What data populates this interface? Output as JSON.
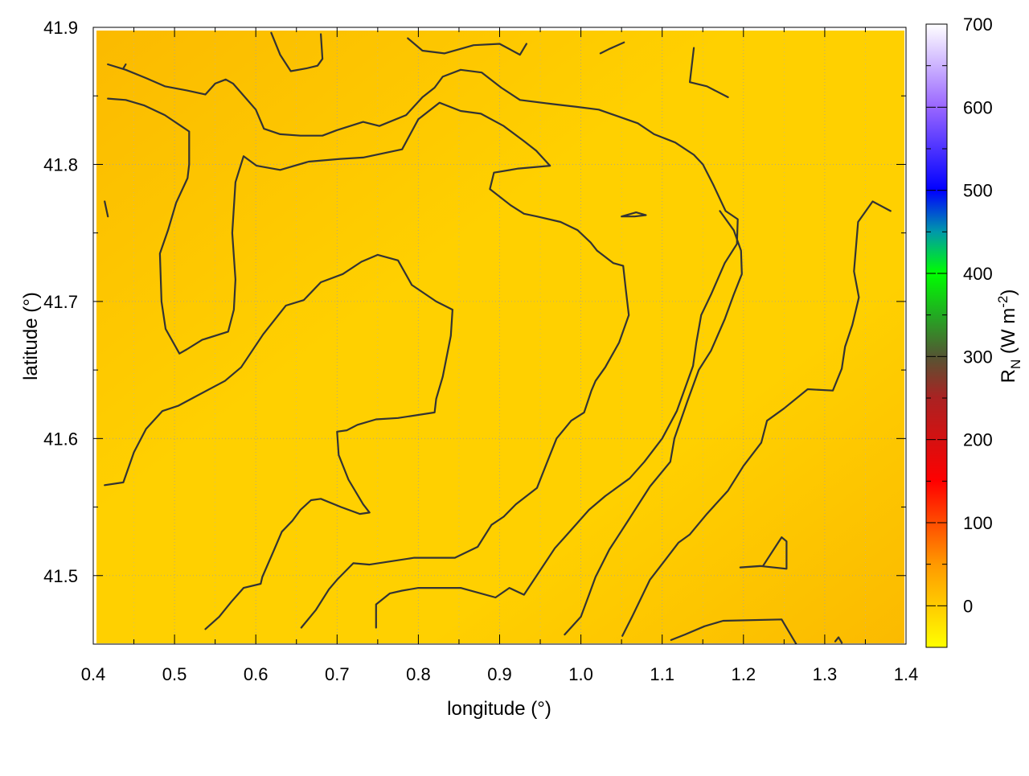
{
  "chart_data": {
    "type": "heatmap",
    "xlabel": "longitude (°)",
    "ylabel": "latitude (°)",
    "xlim": [
      0.4,
      1.4
    ],
    "ylim": [
      41.45,
      41.9
    ],
    "x_ticks": [
      {
        "value": 0.4,
        "label": "0.4"
      },
      {
        "value": 0.5,
        "label": "0.5"
      },
      {
        "value": 0.6,
        "label": "0.6"
      },
      {
        "value": 0.7,
        "label": "0.7"
      },
      {
        "value": 0.8,
        "label": "0.8"
      },
      {
        "value": 0.9,
        "label": "0.9"
      },
      {
        "value": 1.0,
        "label": "1.0"
      },
      {
        "value": 1.1,
        "label": "1.1"
      },
      {
        "value": 1.2,
        "label": "1.2"
      },
      {
        "value": 1.3,
        "label": "1.3"
      },
      {
        "value": 1.4,
        "label": "1.4"
      }
    ],
    "y_ticks": [
      {
        "value": 41.5,
        "label": "41.5"
      },
      {
        "value": 41.6,
        "label": "41.6"
      },
      {
        "value": 41.7,
        "label": "41.7"
      },
      {
        "value": 41.8,
        "label": "41.8"
      },
      {
        "value": 41.9,
        "label": "41.9"
      }
    ],
    "grid": true,
    "colorbar": {
      "label_main": "R",
      "label_sub": "N",
      "label_unit": " (W m",
      "label_sup": "-2",
      "label_close": ")",
      "range": [
        -50,
        700
      ],
      "ticks": [
        {
          "value": 0,
          "label": "0"
        },
        {
          "value": 100,
          "label": "100"
        },
        {
          "value": 200,
          "label": "200"
        },
        {
          "value": 300,
          "label": "300"
        },
        {
          "value": 400,
          "label": "400"
        },
        {
          "value": 500,
          "label": "500"
        },
        {
          "value": 600,
          "label": "600"
        },
        {
          "value": 700,
          "label": "700"
        }
      ],
      "stops": [
        {
          "value": -50,
          "color": "#ffff00"
        },
        {
          "value": 50,
          "color": "#ff9900"
        },
        {
          "value": 150,
          "color": "#ff0000"
        },
        {
          "value": 250,
          "color": "#aa2222"
        },
        {
          "value": 300,
          "color": "#555533"
        },
        {
          "value": 350,
          "color": "#22aa22"
        },
        {
          "value": 400,
          "color": "#00ff00"
        },
        {
          "value": 450,
          "color": "#0099aa"
        },
        {
          "value": 500,
          "color": "#0000ff"
        },
        {
          "value": 600,
          "color": "#9966ff"
        },
        {
          "value": 700,
          "color": "#ffffff"
        }
      ]
    },
    "field_colors": {
      "low": "#fbba00",
      "high": "#ffd000",
      "edge": "#ffffff"
    },
    "contour_color": "#333333",
    "contours": [
      [
        [
          0.418,
          41.873
        ],
        [
          0.44,
          41.869
        ],
        [
          0.465,
          41.863
        ],
        [
          0.488,
          41.857
        ],
        [
          0.515,
          41.854
        ],
        [
          0.538,
          41.851
        ],
        [
          0.55,
          41.859
        ],
        [
          0.563,
          41.862
        ],
        [
          0.572,
          41.859
        ],
        [
          0.6,
          41.84
        ],
        [
          0.61,
          41.826
        ],
        [
          0.63,
          41.822
        ],
        [
          0.655,
          41.821
        ],
        [
          0.682,
          41.821
        ],
        [
          0.7,
          41.825
        ],
        [
          0.732,
          41.831
        ],
        [
          0.752,
          41.828
        ],
        [
          0.785,
          41.836
        ],
        [
          0.805,
          41.849
        ],
        [
          0.82,
          41.856
        ],
        [
          0.83,
          41.864
        ],
        [
          0.852,
          41.869
        ],
        [
          0.878,
          41.867
        ],
        [
          0.902,
          41.856
        ],
        [
          0.925,
          41.847
        ],
        [
          0.965,
          41.844
        ],
        [
          0.995,
          41.842
        ],
        [
          1.022,
          41.84
        ],
        [
          1.07,
          41.83
        ],
        [
          1.09,
          41.822
        ],
        [
          1.116,
          41.816
        ],
        [
          1.139,
          41.807
        ],
        [
          1.15,
          41.8
        ],
        [
          1.163,
          41.785
        ],
        [
          1.178,
          41.766
        ],
        [
          1.193,
          41.76
        ],
        [
          1.192,
          41.742
        ],
        [
          1.177,
          41.728
        ],
        [
          1.16,
          41.705
        ],
        [
          1.148,
          41.69
        ],
        [
          1.142,
          41.67
        ],
        [
          1.138,
          41.653
        ],
        [
          1.118,
          41.62
        ],
        [
          1.1,
          41.6
        ],
        [
          1.078,
          41.583
        ],
        [
          1.06,
          41.571
        ],
        [
          1.03,
          41.558
        ],
        [
          1.01,
          41.548
        ],
        [
          0.98,
          41.528
        ],
        [
          0.968,
          41.52
        ],
        [
          0.93,
          41.486
        ],
        [
          0.912,
          41.491
        ],
        [
          0.895,
          41.484
        ],
        [
          0.852,
          41.491
        ],
        [
          0.8,
          41.491
        ],
        [
          0.78,
          41.489
        ],
        [
          0.765,
          41.487
        ],
        [
          0.748,
          41.479
        ],
        [
          0.748,
          41.462
        ]
      ],
      [
        [
          0.418,
          41.848
        ],
        [
          0.44,
          41.847
        ],
        [
          0.463,
          41.843
        ],
        [
          0.488,
          41.836
        ],
        [
          0.508,
          41.828
        ],
        [
          0.518,
          41.824
        ],
        [
          0.518,
          41.8
        ],
        [
          0.516,
          41.79
        ],
        [
          0.502,
          41.772
        ],
        [
          0.492,
          41.752
        ],
        [
          0.482,
          41.735
        ],
        [
          0.484,
          41.7
        ],
        [
          0.489,
          41.68
        ],
        [
          0.506,
          41.662
        ],
        [
          0.515,
          41.665
        ],
        [
          0.534,
          41.672
        ],
        [
          0.566,
          41.678
        ],
        [
          0.573,
          41.694
        ],
        [
          0.575,
          41.716
        ],
        [
          0.571,
          41.75
        ],
        [
          0.575,
          41.787
        ],
        [
          0.585,
          41.806
        ],
        [
          0.601,
          41.799
        ],
        [
          0.63,
          41.796
        ],
        [
          0.665,
          41.802
        ],
        [
          0.704,
          41.804
        ],
        [
          0.732,
          41.805
        ],
        [
          0.78,
          41.811
        ],
        [
          0.8,
          41.833
        ],
        [
          0.826,
          41.845
        ],
        [
          0.852,
          41.839
        ],
        [
          0.877,
          41.837
        ],
        [
          0.905,
          41.828
        ],
        [
          0.93,
          41.817
        ],
        [
          0.945,
          41.81
        ],
        [
          0.962,
          41.799
        ],
        [
          0.923,
          41.797
        ],
        [
          0.893,
          41.794
        ],
        [
          0.888,
          41.782
        ],
        [
          0.914,
          41.77
        ],
        [
          0.93,
          41.764
        ],
        [
          0.946,
          41.762
        ],
        [
          0.975,
          41.758
        ],
        [
          0.996,
          41.752
        ],
        [
          1.012,
          41.743
        ],
        [
          1.02,
          41.737
        ],
        [
          1.04,
          41.728
        ],
        [
          1.052,
          41.726
        ],
        [
          1.055,
          41.71
        ],
        [
          1.059,
          41.69
        ],
        [
          1.047,
          41.67
        ],
        [
          1.03,
          41.652
        ],
        [
          1.018,
          41.642
        ],
        [
          1.013,
          41.635
        ],
        [
          1.004,
          41.619
        ],
        [
          0.988,
          41.613
        ],
        [
          0.97,
          41.6
        ],
        [
          0.958,
          41.582
        ],
        [
          0.946,
          41.564
        ],
        [
          0.92,
          41.552
        ],
        [
          0.905,
          41.543
        ],
        [
          0.89,
          41.537
        ],
        [
          0.873,
          41.521
        ],
        [
          0.845,
          41.513
        ],
        [
          0.795,
          41.513
        ],
        [
          0.74,
          41.508
        ],
        [
          0.72,
          41.509
        ],
        [
          0.7,
          41.497
        ],
        [
          0.69,
          41.49
        ],
        [
          0.674,
          41.475
        ],
        [
          0.656,
          41.462
        ]
      ],
      [
        [
          0.414,
          41.566
        ],
        [
          0.437,
          41.568
        ],
        [
          0.45,
          41.59
        ],
        [
          0.465,
          41.607
        ],
        [
          0.485,
          41.62
        ],
        [
          0.505,
          41.624
        ],
        [
          0.527,
          41.631
        ],
        [
          0.562,
          41.642
        ],
        [
          0.582,
          41.652
        ],
        [
          0.609,
          41.676
        ],
        [
          0.637,
          41.697
        ],
        [
          0.659,
          41.701
        ],
        [
          0.68,
          41.714
        ],
        [
          0.707,
          41.72
        ],
        [
          0.73,
          41.729
        ],
        [
          0.75,
          41.734
        ],
        [
          0.775,
          41.73
        ],
        [
          0.792,
          41.712
        ],
        [
          0.822,
          41.7
        ],
        [
          0.842,
          41.694
        ],
        [
          0.84,
          41.675
        ],
        [
          0.83,
          41.645
        ],
        [
          0.822,
          41.629
        ],
        [
          0.82,
          41.619
        ],
        [
          0.775,
          41.615
        ],
        [
          0.748,
          41.614
        ],
        [
          0.725,
          41.61
        ],
        [
          0.712,
          41.606
        ],
        [
          0.7,
          41.605
        ],
        [
          0.702,
          41.588
        ],
        [
          0.714,
          41.57
        ],
        [
          0.732,
          41.552
        ],
        [
          0.74,
          41.546
        ],
        [
          0.728,
          41.545
        ],
        [
          0.705,
          41.55
        ],
        [
          0.68,
          41.556
        ],
        [
          0.668,
          41.555
        ],
        [
          0.655,
          41.548
        ],
        [
          0.645,
          41.54
        ],
        [
          0.632,
          41.532
        ],
        [
          0.622,
          41.518
        ],
        [
          0.608,
          41.499
        ],
        [
          0.606,
          41.494
        ],
        [
          0.585,
          41.491
        ],
        [
          0.57,
          41.481
        ],
        [
          0.555,
          41.47
        ],
        [
          0.538,
          41.461
        ]
      ],
      [
        [
          0.44,
          41.873
        ],
        [
          0.437,
          41.87
        ]
      ],
      [
        [
          0.414,
          41.773
        ],
        [
          0.418,
          41.762
        ]
      ],
      [
        [
          0.619,
          41.896
        ],
        [
          0.63,
          41.88
        ],
        [
          0.643,
          41.868
        ],
        [
          0.662,
          41.87
        ],
        [
          0.676,
          41.872
        ],
        [
          0.682,
          41.877
        ],
        [
          0.68,
          41.895
        ]
      ],
      [
        [
          0.787,
          41.892
        ],
        [
          0.805,
          41.883
        ],
        [
          0.832,
          41.881
        ],
        [
          0.868,
          41.887
        ],
        [
          0.9,
          41.888
        ],
        [
          0.925,
          41.88
        ],
        [
          0.933,
          41.888
        ]
      ],
      [
        [
          1.024,
          41.881
        ],
        [
          1.034,
          41.884
        ],
        [
          1.053,
          41.889
        ]
      ],
      [
        [
          1.139,
          41.885
        ],
        [
          1.134,
          41.86
        ],
        [
          1.155,
          41.857
        ],
        [
          1.181,
          41.849
        ]
      ],
      [
        [
          1.05,
          41.762
        ],
        [
          1.068,
          41.765
        ],
        [
          1.08,
          41.763
        ],
        [
          1.066,
          41.762
        ],
        [
          1.05,
          41.762
        ]
      ],
      [
        [
          1.171,
          41.766
        ],
        [
          1.188,
          41.752
        ],
        [
          1.197,
          41.737
        ],
        [
          1.198,
          41.72
        ],
        [
          1.188,
          41.705
        ],
        [
          1.177,
          41.687
        ],
        [
          1.16,
          41.664
        ],
        [
          1.145,
          41.65
        ],
        [
          1.131,
          41.627
        ],
        [
          1.115,
          41.6
        ],
        [
          1.11,
          41.583
        ],
        [
          1.085,
          41.565
        ],
        [
          1.058,
          41.54
        ],
        [
          1.035,
          41.519
        ],
        [
          1.018,
          41.499
        ],
        [
          1.01,
          41.486
        ],
        [
          1.0,
          41.47
        ],
        [
          0.98,
          41.457
        ]
      ],
      [
        [
          1.381,
          41.766
        ],
        [
          1.359,
          41.773
        ],
        [
          1.341,
          41.758
        ],
        [
          1.336,
          41.722
        ],
        [
          1.342,
          41.703
        ],
        [
          1.334,
          41.683
        ],
        [
          1.325,
          41.667
        ],
        [
          1.321,
          41.651
        ],
        [
          1.31,
          41.635
        ],
        [
          1.279,
          41.636
        ],
        [
          1.25,
          41.622
        ],
        [
          1.229,
          41.613
        ],
        [
          1.222,
          41.597
        ],
        [
          1.2,
          41.58
        ],
        [
          1.181,
          41.562
        ],
        [
          1.155,
          41.545
        ],
        [
          1.134,
          41.53
        ],
        [
          1.12,
          41.524
        ],
        [
          1.102,
          41.51
        ],
        [
          1.085,
          41.497
        ],
        [
          1.063,
          41.47
        ],
        [
          1.051,
          41.456
        ]
      ],
      [
        [
          1.196,
          41.506
        ],
        [
          1.224,
          41.507
        ],
        [
          1.247,
          41.528
        ],
        [
          1.253,
          41.525
        ],
        [
          1.253,
          41.505
        ],
        [
          1.22,
          41.507
        ],
        [
          1.196,
          41.506
        ]
      ],
      [
        [
          1.111,
          41.453
        ],
        [
          1.128,
          41.457
        ],
        [
          1.152,
          41.463
        ],
        [
          1.175,
          41.467
        ],
        [
          1.247,
          41.468
        ],
        [
          1.265,
          41.45
        ]
      ],
      [
        [
          1.313,
          41.452
        ],
        [
          1.317,
          41.455
        ],
        [
          1.321,
          41.451
        ]
      ]
    ]
  }
}
